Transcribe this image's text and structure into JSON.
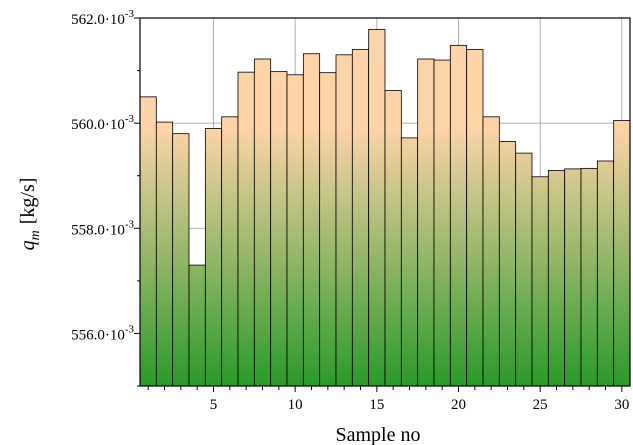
{
  "chart_data": {
    "type": "bar",
    "xlabel": "Sample no",
    "ylabel_symbol": "q",
    "ylabel_subscript": "m",
    "ylabel_unit": "[kg/s]",
    "x": [
      1,
      2,
      3,
      4,
      5,
      6,
      7,
      8,
      9,
      10,
      11,
      12,
      13,
      14,
      15,
      16,
      17,
      18,
      19,
      20,
      21,
      22,
      23,
      24,
      25,
      26,
      27,
      28,
      29,
      30
    ],
    "values": [
      560.5,
      560.02,
      559.8,
      557.3,
      559.9,
      560.12,
      560.97,
      561.22,
      560.98,
      560.92,
      561.32,
      560.96,
      561.3,
      561.4,
      561.78,
      560.62,
      559.72,
      561.22,
      561.2,
      561.48,
      561.4,
      560.12,
      559.65,
      559.43,
      558.98,
      559.1,
      559.13,
      559.14,
      559.28,
      560.05
    ],
    "xlim": [
      0.5,
      30.5
    ],
    "ylim": [
      555.0,
      562.0
    ],
    "x_ticks": [
      {
        "value": 5,
        "label": "5"
      },
      {
        "value": 10,
        "label": "10"
      },
      {
        "value": 15,
        "label": "15"
      },
      {
        "value": 20,
        "label": "20"
      },
      {
        "value": 25,
        "label": "25"
      },
      {
        "value": 30,
        "label": "30"
      }
    ],
    "y_ticks": [
      {
        "value": 556,
        "mantissa": "556.0·10",
        "exponent": "-3"
      },
      {
        "value": 558,
        "mantissa": "558.0·10",
        "exponent": "-3"
      },
      {
        "value": 560,
        "mantissa": "560.0·10",
        "exponent": "-3"
      },
      {
        "value": 562,
        "mantissa": "562.0·10",
        "exponent": "-3"
      }
    ],
    "grid": true,
    "bar_color_top": "#fdd3a8",
    "bar_color_bottom": "#2a9a2a",
    "bar_edge_color": "#000000"
  }
}
